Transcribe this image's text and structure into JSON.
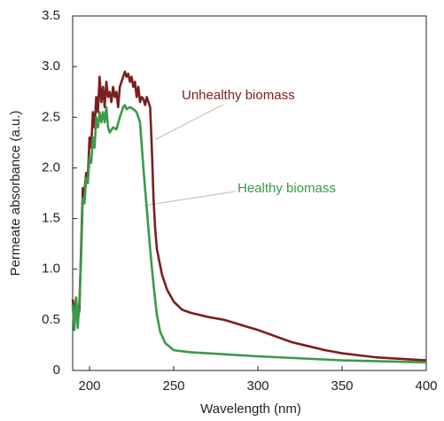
{
  "chart_data": {
    "type": "line",
    "x_label": "Wavelength (nm)",
    "y_label": "Permeate absorbance (a.u.)",
    "xlim": [
      190,
      400
    ],
    "ylim": [
      0,
      3.5
    ],
    "xticks": [
      200,
      250,
      300,
      350,
      400
    ],
    "yticks": [
      0,
      0.5,
      {
        "value": 1,
        "label": "1.0"
      },
      1.5,
      {
        "value": 2,
        "label": "2.0"
      },
      2.5,
      {
        "value": 3,
        "label": "3.0"
      },
      3.5
    ],
    "series": [
      {
        "name": "Unhealthy biomass",
        "color": "#7a1f1f",
        "x": [
          190,
          191,
          192,
          193,
          194,
          195,
          196,
          197,
          198,
          199,
          200,
          201,
          202,
          203,
          204,
          205,
          206,
          207,
          208,
          209,
          210,
          211,
          212,
          213,
          214,
          215,
          216,
          217,
          218,
          219,
          220,
          221,
          222,
          223,
          224,
          225,
          226,
          227,
          228,
          229,
          230,
          231,
          232,
          233,
          234,
          235,
          236,
          237,
          238,
          239,
          240,
          243,
          246,
          250,
          255,
          260,
          270,
          280,
          290,
          300,
          310,
          320,
          330,
          340,
          350,
          360,
          370,
          380,
          390,
          400
        ],
        "values": [
          0.7,
          0.55,
          0.72,
          0.5,
          0.6,
          1.2,
          1.8,
          1.75,
          1.95,
          1.9,
          2.3,
          2.2,
          2.55,
          2.4,
          2.7,
          2.55,
          2.9,
          2.65,
          2.8,
          2.6,
          2.85,
          2.7,
          2.75,
          2.65,
          2.8,
          2.7,
          2.75,
          2.6,
          2.8,
          2.85,
          2.9,
          2.95,
          2.9,
          2.93,
          2.85,
          2.9,
          2.8,
          2.85,
          2.7,
          2.8,
          2.65,
          2.7,
          2.68,
          2.62,
          2.7,
          2.65,
          2.6,
          2.2,
          1.7,
          1.4,
          1.2,
          0.95,
          0.8,
          0.68,
          0.6,
          0.57,
          0.53,
          0.5,
          0.45,
          0.4,
          0.34,
          0.28,
          0.24,
          0.2,
          0.17,
          0.15,
          0.13,
          0.12,
          0.11,
          0.1
        ]
      },
      {
        "name": "Healthy biomass",
        "color": "#3a9a4a",
        "x": [
          190,
          191,
          192,
          193,
          194,
          195,
          196,
          197,
          198,
          199,
          200,
          201,
          202,
          203,
          204,
          205,
          206,
          207,
          208,
          209,
          210,
          211,
          212,
          214,
          216,
          218,
          220,
          221,
          222,
          224,
          226,
          228,
          230,
          232,
          234,
          236,
          238,
          240,
          242,
          245,
          250,
          260,
          280,
          300,
          350,
          400
        ],
        "values": [
          0.65,
          0.4,
          0.72,
          0.42,
          0.7,
          1.1,
          1.7,
          1.65,
          1.9,
          1.85,
          2.1,
          2.05,
          2.3,
          2.2,
          2.5,
          2.4,
          2.55,
          2.45,
          2.55,
          2.45,
          2.6,
          2.4,
          2.35,
          2.4,
          2.38,
          2.5,
          2.6,
          2.62,
          2.58,
          2.6,
          2.58,
          2.55,
          2.45,
          2.0,
          1.6,
          1.2,
          0.85,
          0.55,
          0.38,
          0.27,
          0.2,
          0.18,
          0.16,
          0.14,
          0.1,
          0.08
        ]
      }
    ]
  }
}
